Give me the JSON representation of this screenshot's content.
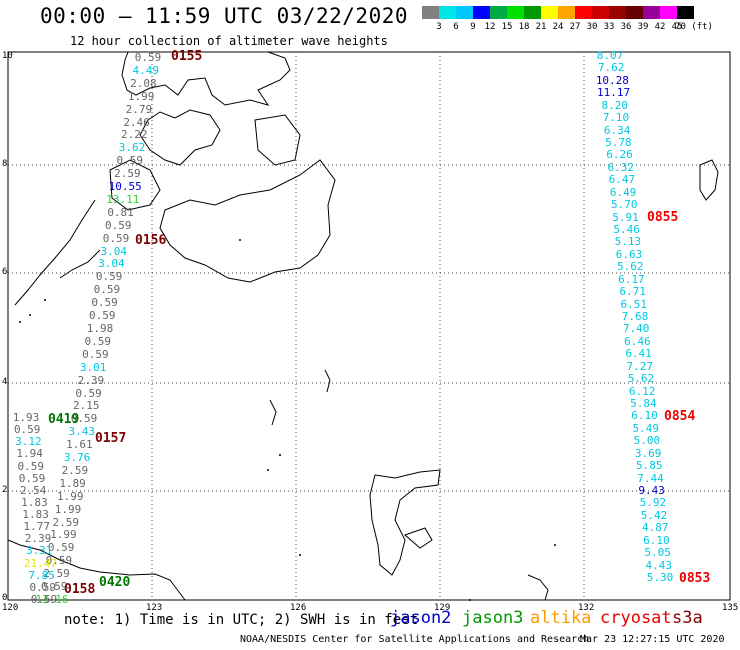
{
  "header": {
    "title": "00:00 – 11:59 UTC 03/22/2020",
    "subtitle": "12 hour collection of altimeter wave heights"
  },
  "colorbar": {
    "colors": [
      "#808080",
      "#00e5e5",
      "#00c8ff",
      "#0000ff",
      "#00aa44",
      "#00e000",
      "#009900",
      "#ffff00",
      "#ffa500",
      "#ff0000",
      "#cc0000",
      "#990000",
      "#660000",
      "#990099",
      "#ff00ff",
      "#000000"
    ],
    "labels": [
      "3",
      "6",
      "9",
      "12",
      "15",
      "18",
      "21",
      "24",
      "27",
      "30",
      "33",
      "36",
      "39",
      "42",
      "45",
      "70 (ft)"
    ]
  },
  "axes": {
    "lon_ticks": [
      "120",
      "123",
      "126",
      "129",
      "132",
      "135"
    ],
    "lat_ticks": [
      "0",
      "2",
      "4",
      "6",
      "8",
      "10"
    ]
  },
  "passes": [
    {
      "label": "0155",
      "color": "#7a0000"
    },
    {
      "label": "0156",
      "color": "#7a0000"
    },
    {
      "label": "0157",
      "color": "#7a0000"
    },
    {
      "label": "0158",
      "color": "#7a0000"
    },
    {
      "label": "0419",
      "color": "#007700"
    },
    {
      "label": "0420",
      "color": "#007700"
    },
    {
      "label": "0855",
      "color": "#ee0000"
    },
    {
      "label": "0854",
      "color": "#ee0000"
    },
    {
      "label": "0853",
      "color": "#ee0000"
    }
  ],
  "tracks": {
    "west": [
      {
        "v": "0.59",
        "c": "gray"
      },
      {
        "v": "4.49",
        "c": "cyan"
      },
      {
        "v": "2.08",
        "c": "gray"
      },
      {
        "v": "1.99",
        "c": "gray"
      },
      {
        "v": "2.79",
        "c": "gray"
      },
      {
        "v": "2.46",
        "c": "gray"
      },
      {
        "v": "2.22",
        "c": "gray"
      },
      {
        "v": "3.62",
        "c": "cyan"
      },
      {
        "v": "0.59",
        "c": "gray"
      },
      {
        "v": "2.59",
        "c": "gray"
      },
      {
        "v": "10.55",
        "c": "blue"
      },
      {
        "v": "13.11",
        "c": "green"
      },
      {
        "v": "0.81",
        "c": "gray"
      },
      {
        "v": "0.59",
        "c": "gray"
      },
      {
        "v": "0.59",
        "c": "gray"
      },
      {
        "v": "3.04",
        "c": "cyan"
      },
      {
        "v": "3.04",
        "c": "cyan"
      },
      {
        "v": "0.59",
        "c": "gray"
      },
      {
        "v": "0.59",
        "c": "gray"
      },
      {
        "v": "0.59",
        "c": "gray"
      },
      {
        "v": "0.59",
        "c": "gray"
      },
      {
        "v": "1.98",
        "c": "gray"
      },
      {
        "v": "0.59",
        "c": "gray"
      },
      {
        "v": "0.59",
        "c": "gray"
      },
      {
        "v": "3.01",
        "c": "cyan"
      },
      {
        "v": "2.39",
        "c": "gray"
      },
      {
        "v": "0.59",
        "c": "gray"
      },
      {
        "v": "2.15",
        "c": "gray"
      },
      {
        "v": "0.59",
        "c": "gray"
      },
      {
        "v": "3.43",
        "c": "cyan"
      },
      {
        "v": "1.61",
        "c": "gray"
      },
      {
        "v": "3.76",
        "c": "cyan"
      },
      {
        "v": "2.59",
        "c": "gray"
      },
      {
        "v": "1.89",
        "c": "gray"
      },
      {
        "v": "1.99",
        "c": "gray"
      },
      {
        "v": "1.99",
        "c": "gray"
      },
      {
        "v": "2.59",
        "c": "gray"
      },
      {
        "v": "1.99",
        "c": "gray"
      },
      {
        "v": "0.59",
        "c": "gray"
      },
      {
        "v": "0.59",
        "c": "gray"
      },
      {
        "v": "2.59",
        "c": "gray"
      },
      {
        "v": "0.59",
        "c": "gray"
      },
      {
        "v": "13.16",
        "c": "green"
      }
    ],
    "jason3": [
      {
        "v": "1.93",
        "c": "gray"
      },
      {
        "v": "0.59",
        "c": "gray"
      },
      {
        "v": "3.12",
        "c": "cyan"
      },
      {
        "v": "1.94",
        "c": "gray"
      },
      {
        "v": "0.59",
        "c": "gray"
      },
      {
        "v": "0.59",
        "c": "gray"
      },
      {
        "v": "2.54",
        "c": "gray"
      },
      {
        "v": "1.83",
        "c": "gray"
      },
      {
        "v": "1.83",
        "c": "gray"
      },
      {
        "v": "1.77",
        "c": "gray"
      },
      {
        "v": "2.39",
        "c": "gray"
      },
      {
        "v": "3.31",
        "c": "cyan"
      },
      {
        "v": "21.47",
        "c": "yellow"
      },
      {
        "v": "7.85",
        "c": "cyan"
      },
      {
        "v": "0.59",
        "c": "gray"
      },
      {
        "v": "0.59",
        "c": "gray"
      }
    ],
    "east": [
      {
        "v": "8.07",
        "c": "cyan"
      },
      {
        "v": "7.62",
        "c": "cyan"
      },
      {
        "v": "10.28",
        "c": "blue"
      },
      {
        "v": "11.17",
        "c": "blue"
      },
      {
        "v": "8.20",
        "c": "cyan"
      },
      {
        "v": "7.10",
        "c": "cyan"
      },
      {
        "v": "6.34",
        "c": "cyan"
      },
      {
        "v": "5.78",
        "c": "cyan"
      },
      {
        "v": "6.26",
        "c": "cyan"
      },
      {
        "v": "6.32",
        "c": "cyan"
      },
      {
        "v": "6.47",
        "c": "cyan"
      },
      {
        "v": "6.49",
        "c": "cyan"
      },
      {
        "v": "5.70",
        "c": "cyan"
      },
      {
        "v": "5.91",
        "c": "cyan"
      },
      {
        "v": "5.46",
        "c": "cyan"
      },
      {
        "v": "5.13",
        "c": "cyan"
      },
      {
        "v": "6.63",
        "c": "cyan"
      },
      {
        "v": "5.62",
        "c": "cyan"
      },
      {
        "v": "6.17",
        "c": "cyan"
      },
      {
        "v": "6.71",
        "c": "cyan"
      },
      {
        "v": "6.51",
        "c": "cyan"
      },
      {
        "v": "7.68",
        "c": "cyan"
      },
      {
        "v": "7.40",
        "c": "cyan"
      },
      {
        "v": "6.46",
        "c": "cyan"
      },
      {
        "v": "6.41",
        "c": "cyan"
      },
      {
        "v": "7.27",
        "c": "cyan"
      },
      {
        "v": "5.62",
        "c": "cyan"
      },
      {
        "v": "6.12",
        "c": "cyan"
      },
      {
        "v": "5.84",
        "c": "cyan"
      },
      {
        "v": "6.10",
        "c": "cyan"
      },
      {
        "v": "5.49",
        "c": "cyan"
      },
      {
        "v": "5.00",
        "c": "cyan"
      },
      {
        "v": "3.69",
        "c": "cyan"
      },
      {
        "v": "5.85",
        "c": "cyan"
      },
      {
        "v": "7.44",
        "c": "cyan"
      },
      {
        "v": "9.43",
        "c": "blue"
      },
      {
        "v": "5.92",
        "c": "cyan"
      },
      {
        "v": "5.42",
        "c": "cyan"
      },
      {
        "v": "4.87",
        "c": "cyan"
      },
      {
        "v": "6.10",
        "c": "cyan"
      },
      {
        "v": "5.05",
        "c": "cyan"
      },
      {
        "v": "4.43",
        "c": "cyan"
      },
      {
        "v": "5.30",
        "c": "cyan"
      }
    ]
  },
  "footer": {
    "note": "note: 1) Time is in UTC; 2) SWH is in feet",
    "legend": [
      {
        "label": "jason2",
        "color": "#0000cc"
      },
      {
        "label": "jason3",
        "color": "#009900"
      },
      {
        "label": "altika",
        "color": "#ff9900"
      },
      {
        "label": "cryosat",
        "color": "#ee0000"
      },
      {
        "label": "s3a",
        "color": "#880000"
      }
    ],
    "credit": "NOAA/NESDIS Center for Satellite Applications and Research",
    "stamp": "Mar 23 12:27:15 UTC 2020"
  }
}
